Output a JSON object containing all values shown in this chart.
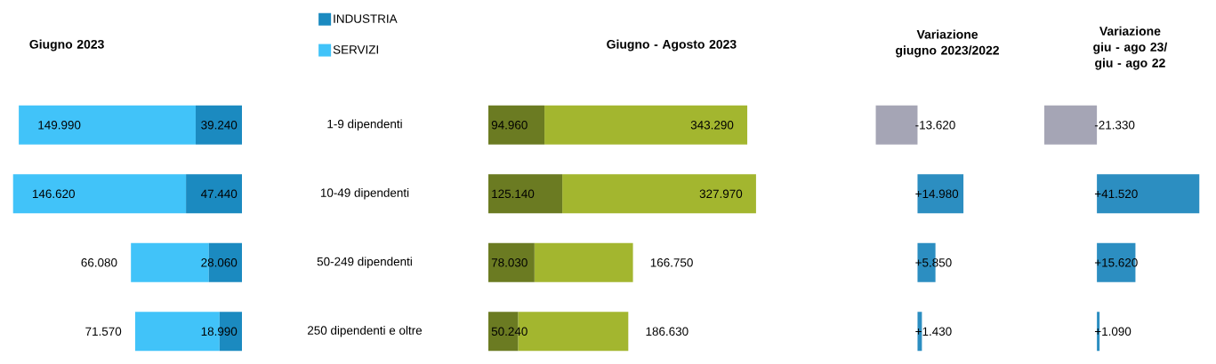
{
  "chart_data": [
    {
      "type": "bar",
      "orientation": "horizontal",
      "stacked": true,
      "title": "Giugno 2023",
      "legend": "top right",
      "tick_labels": "y",
      "categories": [
        "1-9 dipendenti",
        "10-49 dipendenti",
        "50-249 dipendenti",
        "250 dipendenti e oltre"
      ],
      "series": [
        {
          "name": "INDUSTRIA",
          "color": "#1b8ac0",
          "values": [
            39240,
            47440,
            28060,
            18990
          ],
          "value_labels": [
            "39.240",
            "47.440",
            "28.060",
            "18.990"
          ]
        },
        {
          "name": "SERVIZI",
          "color": "#41c3f9",
          "values": [
            149990,
            146620,
            66080,
            71570
          ],
          "value_labels": [
            "149.990",
            "146.620",
            "66.080",
            "71.570"
          ]
        }
      ]
    },
    {
      "type": "bar",
      "orientation": "horizontal",
      "stacked": true,
      "title": "Giugno - Agosto 2023",
      "tick_labels": false,
      "categories": [
        null,
        null,
        null,
        null
      ],
      "series": [
        {
          "color": "#6b7b22",
          "values": [
            94960,
            125140,
            78030,
            50240
          ],
          "value_labels": [
            "94.960",
            "125.140",
            "78.030",
            "50.240"
          ]
        },
        {
          "color": "#a3b62f",
          "values": [
            343290,
            327970,
            166750,
            186630
          ],
          "value_labels": [
            "343.290",
            "327.970",
            "166.750",
            "186.630"
          ]
        }
      ]
    },
    {
      "type": "bar",
      "orientation": "horizontal",
      "title": "Variazione giugno 2023/2022",
      "tick_labels": false,
      "categories": [
        null,
        null,
        null,
        null
      ],
      "values": [
        -13620,
        14980,
        5850,
        1430
      ],
      "value_labels": [
        "-13.620",
        "+14.980",
        "+5.850",
        "+1.430"
      ],
      "colors": [
        "#a5a5b5",
        "#2c8ec1",
        "#2c8ec1",
        "#2c8ec1"
      ]
    },
    {
      "type": "bar",
      "orientation": "horizontal",
      "title": "Variazione giu - ago 23/ giu - ago 22",
      "tick_labels": false,
      "categories": [
        null,
        null,
        null,
        null
      ],
      "values": [
        -21330,
        41520,
        15620,
        1090
      ],
      "value_labels": [
        "-21.330",
        "+41.520",
        "+15.620",
        "+1.090"
      ],
      "colors": [
        "#a5a5b5",
        "#2c8ec1",
        "#2c8ec1",
        "#2c8ec1"
      ]
    }
  ]
}
